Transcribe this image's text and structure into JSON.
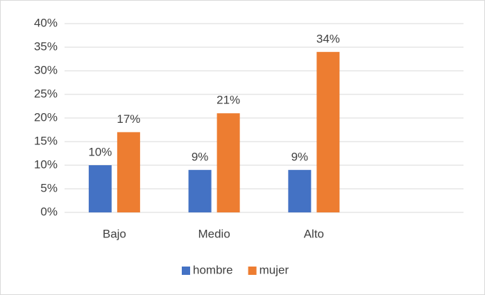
{
  "chart_data": {
    "type": "bar",
    "categories": [
      "Bajo",
      "Medio",
      "Alto",
      null
    ],
    "series": [
      {
        "name": "hombre",
        "color": "#4472c4",
        "values": [
          10,
          9,
          9,
          null
        ],
        "value_labels": [
          "10%",
          "9%",
          "9%",
          null
        ]
      },
      {
        "name": "mujer",
        "color": "#ed7d31",
        "values": [
          17,
          21,
          34,
          null
        ],
        "value_labels": [
          "17%",
          "21%",
          "34%",
          null
        ]
      }
    ],
    "ylim": [
      0,
      40
    ],
    "yticks": [
      {
        "value": 0,
        "label": "0%"
      },
      {
        "value": 5,
        "label": "5%"
      },
      {
        "value": 10,
        "label": "10%"
      },
      {
        "value": 15,
        "label": "15%"
      },
      {
        "value": 20,
        "label": "20%"
      },
      {
        "value": 25,
        "label": "25%"
      },
      {
        "value": 30,
        "label": "30%"
      },
      {
        "value": 35,
        "label": "35%"
      },
      {
        "value": 40,
        "label": "40%"
      }
    ],
    "grid": true,
    "legend": "bottom"
  }
}
